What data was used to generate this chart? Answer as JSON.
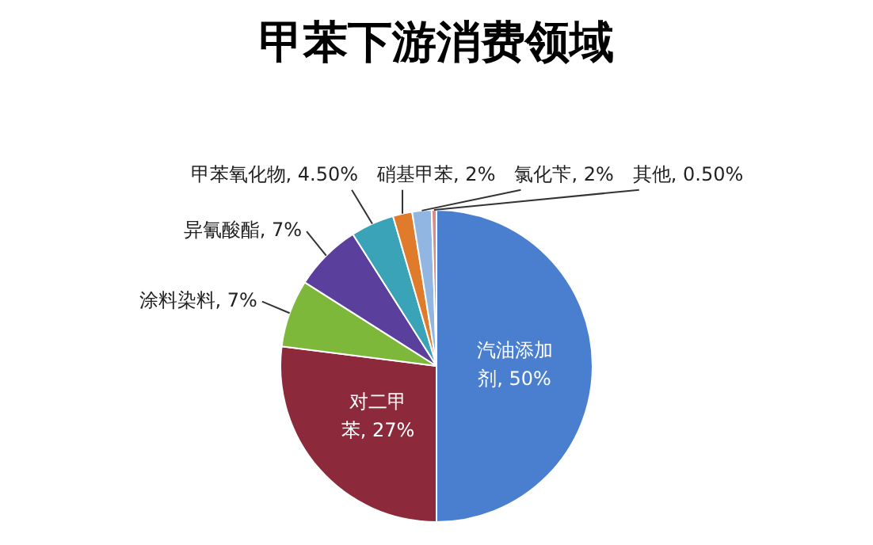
{
  "chart_data": {
    "type": "pie",
    "title": "甲苯下游消费领域",
    "categories": [
      "汽油添加剂",
      "对二甲苯",
      "涂料染料",
      "异氰酸酯",
      "甲苯氧化物",
      "硝基甲苯",
      "氯化苄",
      "其他"
    ],
    "values": [
      50,
      27,
      7,
      7,
      4.5,
      2,
      2,
      0.5
    ],
    "value_labels": [
      "50%",
      "27%",
      "7%",
      "7%",
      "4.50%",
      "2%",
      "2%",
      "0.50%"
    ],
    "colors": [
      "#4a7fcf",
      "#8c2a3c",
      "#7db83a",
      "#5b3f9c",
      "#3aa3b8",
      "#e07b2b",
      "#92b6e2",
      "#d98c8c"
    ],
    "legend": false
  }
}
